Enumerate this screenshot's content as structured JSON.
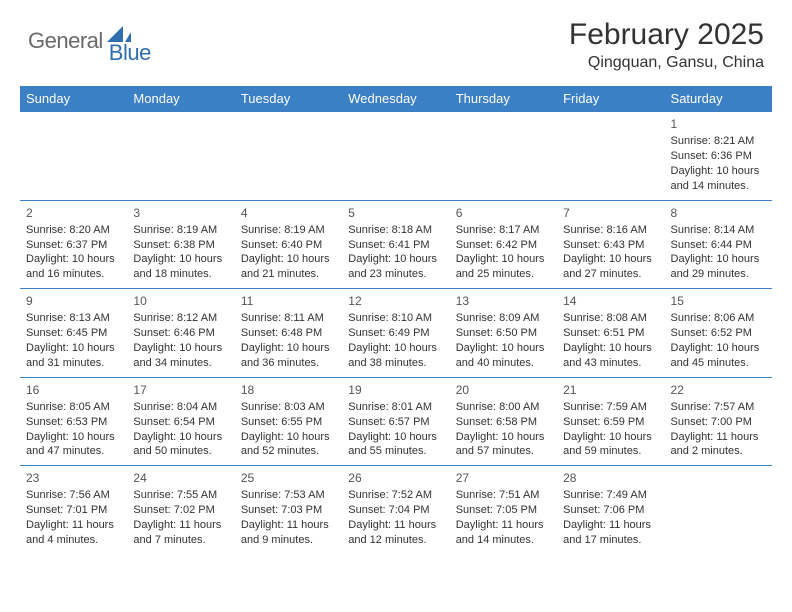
{
  "logo": {
    "text_general": "General",
    "text_blue": "Blue",
    "general_color": "#6a6a6a",
    "blue_color": "#2f6fb0",
    "icon_color": "#2f6fb0"
  },
  "title": "February 2025",
  "location": "Qingquan, Gansu, China",
  "header_bg": "#3b7fc4",
  "header_fg": "#ffffff",
  "border_color": "#3b7fc4",
  "text_color": "#333333",
  "days_of_week": [
    "Sunday",
    "Monday",
    "Tuesday",
    "Wednesday",
    "Thursday",
    "Friday",
    "Saturday"
  ],
  "weeks": [
    [
      null,
      null,
      null,
      null,
      null,
      null,
      {
        "n": "1",
        "sr": "Sunrise: 8:21 AM",
        "ss": "Sunset: 6:36 PM",
        "dl": "Daylight: 10 hours and 14 minutes."
      }
    ],
    [
      {
        "n": "2",
        "sr": "Sunrise: 8:20 AM",
        "ss": "Sunset: 6:37 PM",
        "dl": "Daylight: 10 hours and 16 minutes."
      },
      {
        "n": "3",
        "sr": "Sunrise: 8:19 AM",
        "ss": "Sunset: 6:38 PM",
        "dl": "Daylight: 10 hours and 18 minutes."
      },
      {
        "n": "4",
        "sr": "Sunrise: 8:19 AM",
        "ss": "Sunset: 6:40 PM",
        "dl": "Daylight: 10 hours and 21 minutes."
      },
      {
        "n": "5",
        "sr": "Sunrise: 8:18 AM",
        "ss": "Sunset: 6:41 PM",
        "dl": "Daylight: 10 hours and 23 minutes."
      },
      {
        "n": "6",
        "sr": "Sunrise: 8:17 AM",
        "ss": "Sunset: 6:42 PM",
        "dl": "Daylight: 10 hours and 25 minutes."
      },
      {
        "n": "7",
        "sr": "Sunrise: 8:16 AM",
        "ss": "Sunset: 6:43 PM",
        "dl": "Daylight: 10 hours and 27 minutes."
      },
      {
        "n": "8",
        "sr": "Sunrise: 8:14 AM",
        "ss": "Sunset: 6:44 PM",
        "dl": "Daylight: 10 hours and 29 minutes."
      }
    ],
    [
      {
        "n": "9",
        "sr": "Sunrise: 8:13 AM",
        "ss": "Sunset: 6:45 PM",
        "dl": "Daylight: 10 hours and 31 minutes."
      },
      {
        "n": "10",
        "sr": "Sunrise: 8:12 AM",
        "ss": "Sunset: 6:46 PM",
        "dl": "Daylight: 10 hours and 34 minutes."
      },
      {
        "n": "11",
        "sr": "Sunrise: 8:11 AM",
        "ss": "Sunset: 6:48 PM",
        "dl": "Daylight: 10 hours and 36 minutes."
      },
      {
        "n": "12",
        "sr": "Sunrise: 8:10 AM",
        "ss": "Sunset: 6:49 PM",
        "dl": "Daylight: 10 hours and 38 minutes."
      },
      {
        "n": "13",
        "sr": "Sunrise: 8:09 AM",
        "ss": "Sunset: 6:50 PM",
        "dl": "Daylight: 10 hours and 40 minutes."
      },
      {
        "n": "14",
        "sr": "Sunrise: 8:08 AM",
        "ss": "Sunset: 6:51 PM",
        "dl": "Daylight: 10 hours and 43 minutes."
      },
      {
        "n": "15",
        "sr": "Sunrise: 8:06 AM",
        "ss": "Sunset: 6:52 PM",
        "dl": "Daylight: 10 hours and 45 minutes."
      }
    ],
    [
      {
        "n": "16",
        "sr": "Sunrise: 8:05 AM",
        "ss": "Sunset: 6:53 PM",
        "dl": "Daylight: 10 hours and 47 minutes."
      },
      {
        "n": "17",
        "sr": "Sunrise: 8:04 AM",
        "ss": "Sunset: 6:54 PM",
        "dl": "Daylight: 10 hours and 50 minutes."
      },
      {
        "n": "18",
        "sr": "Sunrise: 8:03 AM",
        "ss": "Sunset: 6:55 PM",
        "dl": "Daylight: 10 hours and 52 minutes."
      },
      {
        "n": "19",
        "sr": "Sunrise: 8:01 AM",
        "ss": "Sunset: 6:57 PM",
        "dl": "Daylight: 10 hours and 55 minutes."
      },
      {
        "n": "20",
        "sr": "Sunrise: 8:00 AM",
        "ss": "Sunset: 6:58 PM",
        "dl": "Daylight: 10 hours and 57 minutes."
      },
      {
        "n": "21",
        "sr": "Sunrise: 7:59 AM",
        "ss": "Sunset: 6:59 PM",
        "dl": "Daylight: 10 hours and 59 minutes."
      },
      {
        "n": "22",
        "sr": "Sunrise: 7:57 AM",
        "ss": "Sunset: 7:00 PM",
        "dl": "Daylight: 11 hours and 2 minutes."
      }
    ],
    [
      {
        "n": "23",
        "sr": "Sunrise: 7:56 AM",
        "ss": "Sunset: 7:01 PM",
        "dl": "Daylight: 11 hours and 4 minutes."
      },
      {
        "n": "24",
        "sr": "Sunrise: 7:55 AM",
        "ss": "Sunset: 7:02 PM",
        "dl": "Daylight: 11 hours and 7 minutes."
      },
      {
        "n": "25",
        "sr": "Sunrise: 7:53 AM",
        "ss": "Sunset: 7:03 PM",
        "dl": "Daylight: 11 hours and 9 minutes."
      },
      {
        "n": "26",
        "sr": "Sunrise: 7:52 AM",
        "ss": "Sunset: 7:04 PM",
        "dl": "Daylight: 11 hours and 12 minutes."
      },
      {
        "n": "27",
        "sr": "Sunrise: 7:51 AM",
        "ss": "Sunset: 7:05 PM",
        "dl": "Daylight: 11 hours and 14 minutes."
      },
      {
        "n": "28",
        "sr": "Sunrise: 7:49 AM",
        "ss": "Sunset: 7:06 PM",
        "dl": "Daylight: 11 hours and 17 minutes."
      },
      null
    ]
  ]
}
